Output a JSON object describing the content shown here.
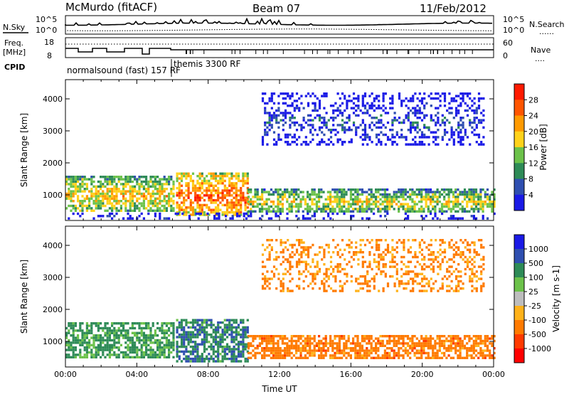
{
  "header": {
    "station": "McMurdo (fitACF)",
    "beam": "Beam 07",
    "date": "11/Feb/2012"
  },
  "noise_panel": {
    "left_label": "N.Sky",
    "right_label": "N.Search",
    "right_key": "......",
    "ticks_left": [
      "10^5",
      "10^0"
    ],
    "ticks_right": [
      "10^5",
      "10^0"
    ]
  },
  "freq_panel": {
    "left_label_1": "Freq.",
    "left_label_2": "[MHz]",
    "right_label": "Nave",
    "right_key": "....",
    "ticks_left": [
      "18",
      "8"
    ],
    "ticks_right": [
      "60",
      "0"
    ]
  },
  "cpid": {
    "label": "CPID",
    "programs": [
      {
        "name": "normalsound (fast)  157 RF"
      },
      {
        "name": "themis 3300 RF"
      }
    ]
  },
  "chart_data": [
    {
      "type": "heatmap",
      "quantity": "Power",
      "ylabel": "Slant Range [km]",
      "xlabel": "",
      "x_range_hours": [
        0,
        24
      ],
      "ylim_km": [
        200,
        4600
      ],
      "y_ticks": [
        1000,
        2000,
        3000,
        4000
      ],
      "colorbar": {
        "label": "Power [dB]",
        "ticks": [
          "4",
          "8",
          "12",
          "16",
          "20",
          "24",
          "28"
        ],
        "colors": [
          "#1a1ae6",
          "#2f4fb0",
          "#2e8b57",
          "#6cc24a",
          "#ffd21a",
          "#ff9a00",
          "#ff5500",
          "#ff1a00"
        ]
      },
      "echo_regions": [
        {
          "t_start": 0.0,
          "t_end": 6.0,
          "range_start": 500,
          "range_end": 1600,
          "power_db": 22
        },
        {
          "t_start": 6.2,
          "t_end": 10.2,
          "range_start": 400,
          "range_end": 1700,
          "power_db": 28
        },
        {
          "t_start": 10.2,
          "t_end": 24.0,
          "range_start": 500,
          "range_end": 1200,
          "power_db": 20
        },
        {
          "t_start": 11.0,
          "t_end": 23.5,
          "range_start": 2600,
          "range_end": 4200,
          "power_db": 8
        },
        {
          "t_start": 0.0,
          "t_end": 24.0,
          "range_start": 250,
          "range_end": 450,
          "power_db": 6
        }
      ]
    },
    {
      "type": "heatmap",
      "quantity": "Velocity",
      "ylabel": "Slant Range [km]",
      "xlabel": "Time UT",
      "x_range_hours": [
        0,
        24
      ],
      "ylim_km": [
        200,
        4600
      ],
      "y_ticks": [
        1000,
        2000,
        3000,
        4000
      ],
      "x_ticks": [
        "00:00",
        "04:00",
        "08:00",
        "12:00",
        "16:00",
        "20:00",
        "00:00"
      ],
      "colorbar": {
        "label": "Velocity  [m s-1]",
        "ticks": [
          "1000",
          "500",
          "100",
          "25",
          "-25",
          "-100",
          "-500",
          "-1000"
        ],
        "colors": [
          "#1a1ae6",
          "#2f4fb0",
          "#2e8b57",
          "#6cc24a",
          "#bdbdbd",
          "#ffb21a",
          "#ff7a00",
          "#ff3a00",
          "#ff0000"
        ]
      },
      "echo_regions": [
        {
          "t_start": 0.0,
          "t_end": 6.0,
          "range_start": 500,
          "range_end": 1600,
          "velocity": 150
        },
        {
          "t_start": 6.2,
          "t_end": 10.2,
          "range_start": 400,
          "range_end": 1700,
          "velocity": 400
        },
        {
          "t_start": 10.2,
          "t_end": 24.0,
          "range_start": 500,
          "range_end": 1200,
          "velocity": -300
        },
        {
          "t_start": 11.0,
          "t_end": 23.5,
          "range_start": 2600,
          "range_end": 4200,
          "velocity": -150
        }
      ]
    }
  ]
}
